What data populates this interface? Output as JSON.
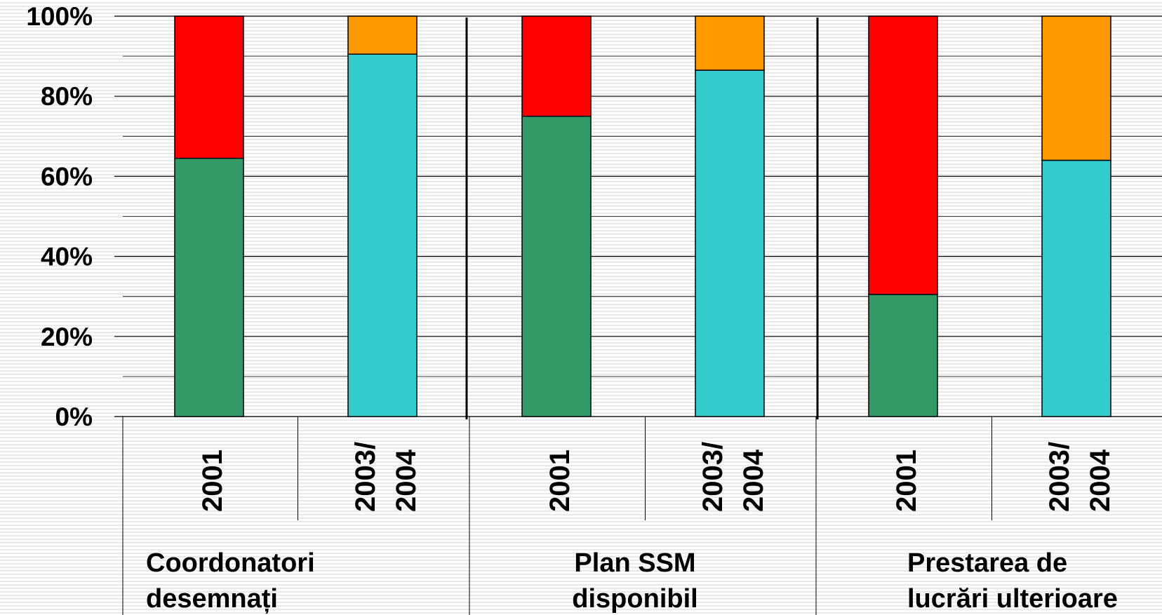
{
  "chart_data": {
    "type": "bar",
    "stacked": true,
    "percent_stacked": true,
    "y_tick_labels": [
      "0%",
      "20%",
      "40%",
      "60%",
      "80%",
      "100%"
    ],
    "ylim": [
      0,
      100
    ],
    "grid": true,
    "groups": [
      {
        "label_lines": [
          "Coordonatori",
          "desemnați"
        ],
        "bars": [
          {
            "label_lines": [
              "2001"
            ],
            "bottom_color": "#339966",
            "top_color": "#ff0000",
            "bottom_value": 64.5,
            "top_value": 35.5
          },
          {
            "label_lines": [
              "2003/",
              "2004"
            ],
            "bottom_color": "#33cccc",
            "top_color": "#ff9900",
            "bottom_value": 90.5,
            "top_value": 9.5
          }
        ]
      },
      {
        "label_lines": [
          "Plan SSM",
          "disponibil"
        ],
        "bars": [
          {
            "label_lines": [
              "2001"
            ],
            "bottom_color": "#339966",
            "top_color": "#ff0000",
            "bottom_value": 75,
            "top_value": 25
          },
          {
            "label_lines": [
              "2003/",
              "2004"
            ],
            "bottom_color": "#33cccc",
            "top_color": "#ff9900",
            "bottom_value": 86.5,
            "top_value": 13.5
          }
        ]
      },
      {
        "label_lines": [
          "Prestarea de",
          "lucrări ulterioare"
        ],
        "bars": [
          {
            "label_lines": [
              "2001"
            ],
            "bottom_color": "#339966",
            "top_color": "#ff0000",
            "bottom_value": 30.5,
            "top_value": 69.5
          },
          {
            "label_lines": [
              "2003/",
              "2004"
            ],
            "bottom_color": "#33cccc",
            "top_color": "#ff9900",
            "bottom_value": 64,
            "top_value": 36
          }
        ]
      }
    ]
  }
}
